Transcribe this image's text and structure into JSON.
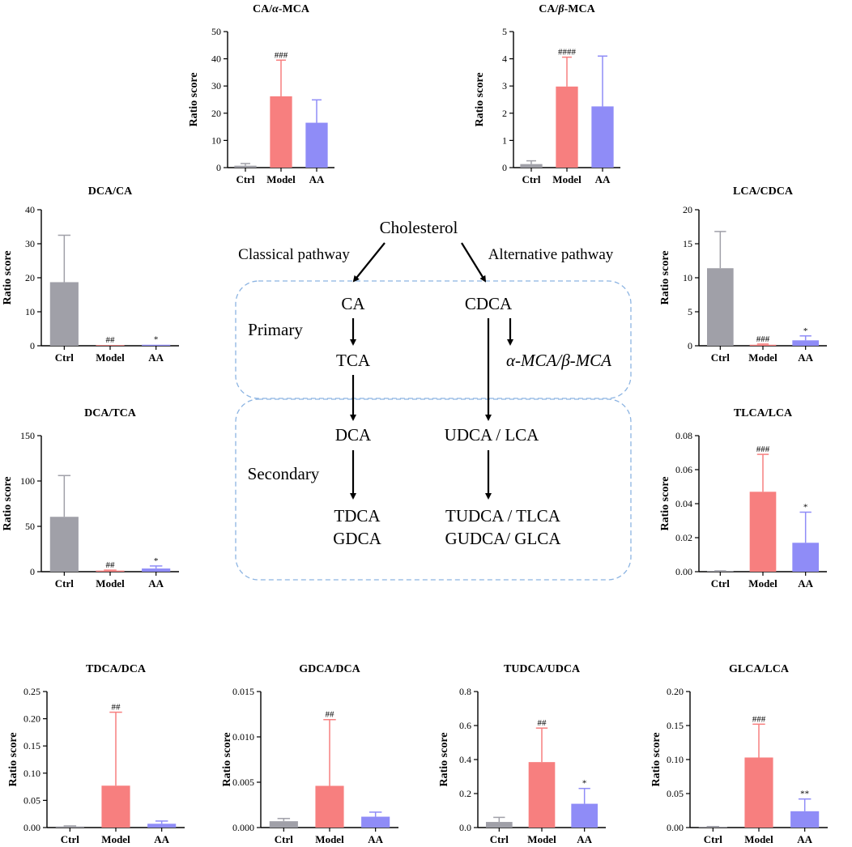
{
  "colors": {
    "ctrl": "#a0a0a8",
    "model": "#f77f7f",
    "aa": "#8f8cf7",
    "dash_box": "#8cb4e2"
  },
  "diagram": {
    "cholesterol": "Cholesterol",
    "classical_pathway": "Classical pathway",
    "alternative_pathway": "Alternative pathway",
    "primary_label": "Primary",
    "secondary_label": "Secondary",
    "ca": "CA",
    "cdca": "CDCA",
    "tca": "TCA",
    "mca": "α-MCA/β-MCA",
    "dca": "DCA",
    "udca_lca": "UDCA / LCA",
    "tdca": "TDCA",
    "gdca": "GDCA",
    "tudca_tlca": "TUDCA / TLCA",
    "gudca_glca": "GUDCA/ GLCA"
  },
  "chart_data": [
    {
      "id": "ca-amca",
      "type": "bar",
      "title": "CA/α-MCA",
      "ylabel": "Ratio score",
      "categories": [
        "Ctrl",
        "Model",
        "AA"
      ],
      "values": [
        0.7,
        26.2,
        16.5
      ],
      "errors": [
        0.8,
        13.3,
        8.4
      ],
      "significance": [
        "",
        "###",
        ""
      ],
      "ylim": [
        0,
        50
      ],
      "yticks": [
        "0",
        "10",
        "20",
        "30",
        "40",
        "50"
      ]
    },
    {
      "id": "ca-bmca",
      "type": "bar",
      "title": "CA/β-MCA",
      "ylabel": "Ratio score",
      "categories": [
        "Ctrl",
        "Model",
        "AA"
      ],
      "values": [
        0.13,
        2.98,
        2.25
      ],
      "errors": [
        0.12,
        1.08,
        1.85
      ],
      "significance": [
        "",
        "####",
        ""
      ],
      "ylim": [
        0,
        5
      ],
      "yticks": [
        "0",
        "1",
        "2",
        "3",
        "4",
        "5"
      ]
    },
    {
      "id": "dca-ca",
      "type": "bar",
      "title": "DCA/CA",
      "ylabel": "Ratio score",
      "categories": [
        "Ctrl",
        "Model",
        "AA"
      ],
      "values": [
        18.7,
        0.1,
        0.3
      ],
      "errors": [
        13.8,
        0,
        0
      ],
      "significance": [
        "",
        "##",
        "*"
      ],
      "ylim": [
        0,
        40
      ],
      "yticks": [
        "0",
        "10",
        "20",
        "30",
        "40"
      ]
    },
    {
      "id": "lca-cdca",
      "type": "bar",
      "title": "LCA/CDCA",
      "ylabel": "Ratio score",
      "categories": [
        "Ctrl",
        "Model",
        "AA"
      ],
      "values": [
        11.4,
        0.15,
        0.8
      ],
      "errors": [
        5.4,
        0.1,
        0.65
      ],
      "significance": [
        "",
        "###",
        "*"
      ],
      "ylim": [
        0,
        20
      ],
      "yticks": [
        "0",
        "5",
        "10",
        "15",
        "20"
      ]
    },
    {
      "id": "dca-tca",
      "type": "bar",
      "title": "DCA/TCA",
      "ylabel": "Ratio score",
      "categories": [
        "Ctrl",
        "Model",
        "AA"
      ],
      "values": [
        60.5,
        1.2,
        3.5
      ],
      "errors": [
        45.5,
        0.5,
        2.8
      ],
      "significance": [
        "",
        "##",
        "*"
      ],
      "ylim": [
        0,
        150
      ],
      "yticks": [
        "0",
        "50",
        "100",
        "150"
      ]
    },
    {
      "id": "tlca-lca",
      "type": "bar",
      "title": "TLCA/LCA",
      "ylabel": "Ratio score",
      "categories": [
        "Ctrl",
        "Model",
        "AA"
      ],
      "values": [
        0.0003,
        0.047,
        0.017
      ],
      "errors": [
        0.0002,
        0.022,
        0.018
      ],
      "significance": [
        "",
        "###",
        "*"
      ],
      "ylim": [
        0,
        0.08
      ],
      "yticks": [
        "0.00",
        "0.02",
        "0.04",
        "0.06",
        "0.08"
      ]
    },
    {
      "id": "tdca-dca",
      "type": "bar",
      "title": "TDCA/DCA",
      "ylabel": "Ratio score",
      "categories": [
        "Ctrl",
        "Model",
        "AA"
      ],
      "values": [
        0.002,
        0.077,
        0.007
      ],
      "errors": [
        0.001,
        0.135,
        0.005
      ],
      "significance": [
        "",
        "##",
        ""
      ],
      "ylim": [
        0,
        0.25
      ],
      "yticks": [
        "0.00",
        "0.05",
        "0.10",
        "0.15",
        "0.20",
        "0.25"
      ]
    },
    {
      "id": "gdca-dca",
      "type": "bar",
      "title": "GDCA/DCA",
      "ylabel": "Ratio score",
      "categories": [
        "Ctrl",
        "Model",
        "AA"
      ],
      "values": [
        0.0007,
        0.0046,
        0.0012
      ],
      "errors": [
        0.0003,
        0.0073,
        0.0005
      ],
      "significance": [
        "",
        "##",
        ""
      ],
      "ylim": [
        0,
        0.015
      ],
      "yticks": [
        "0.000",
        "0.005",
        "0.010",
        "0.015"
      ]
    },
    {
      "id": "tudca-udca",
      "type": "bar",
      "title": "TUDCA/UDCA",
      "ylabel": "Ratio score",
      "categories": [
        "Ctrl",
        "Model",
        "AA"
      ],
      "values": [
        0.033,
        0.385,
        0.14
      ],
      "errors": [
        0.027,
        0.2,
        0.09
      ],
      "significance": [
        "",
        "##",
        "*"
      ],
      "ylim": [
        0,
        0.8
      ],
      "yticks": [
        "0.0",
        "0.2",
        "0.4",
        "0.6",
        "0.8"
      ]
    },
    {
      "id": "glca-lca",
      "type": "bar",
      "title": "GLCA/LCA",
      "ylabel": "Ratio score",
      "categories": [
        "Ctrl",
        "Model",
        "AA"
      ],
      "values": [
        0.001,
        0.103,
        0.024
      ],
      "errors": [
        0.0005,
        0.049,
        0.018
      ],
      "significance": [
        "",
        "###",
        "**"
      ],
      "ylim": [
        0,
        0.2
      ],
      "yticks": [
        "0.00",
        "0.05",
        "0.10",
        "0.15",
        "0.20"
      ]
    }
  ]
}
